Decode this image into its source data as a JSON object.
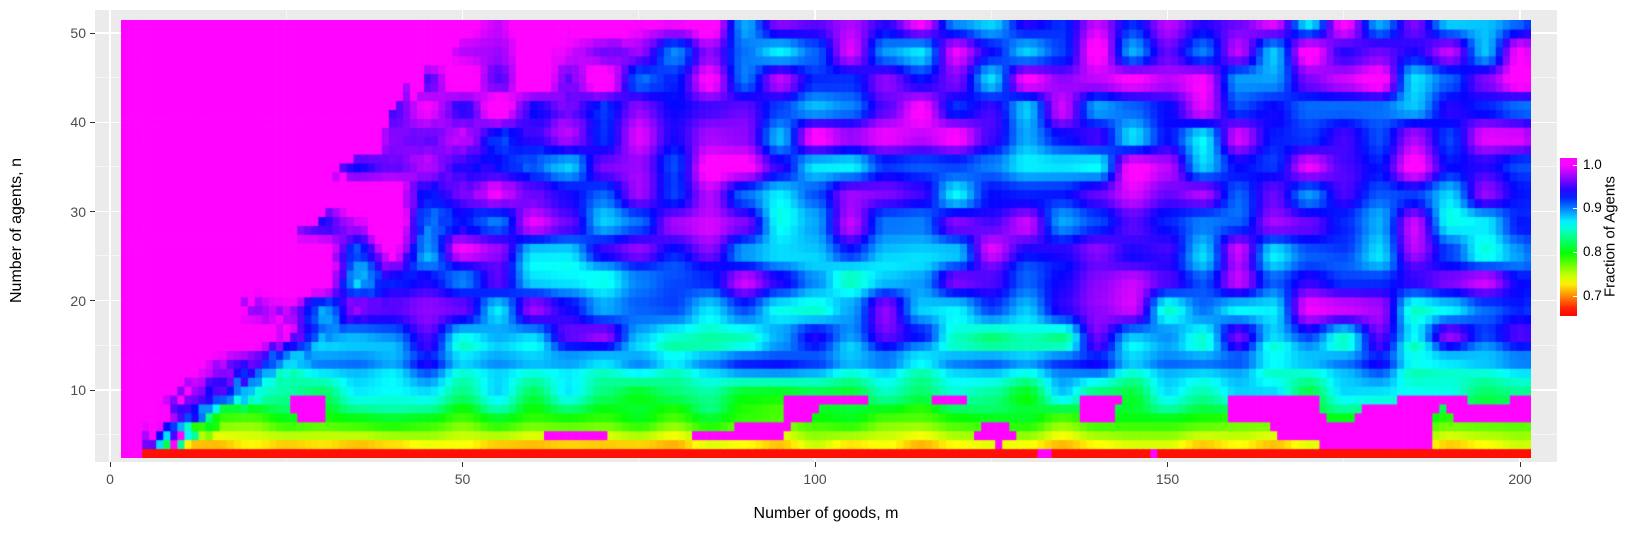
{
  "figure": {
    "background": "#ffffff",
    "panel_background": "#ebebeb",
    "grid_color": "#ffffff"
  },
  "x_axis": {
    "label": "Number of goods, m",
    "tick_labels": [
      "0",
      "50",
      "100",
      "150",
      "200"
    ],
    "tick_values": [
      0,
      50,
      100,
      150,
      200
    ],
    "minor_tick_values": [
      25,
      75,
      125,
      175
    ]
  },
  "y_axis": {
    "label": "Number of agents, n",
    "tick_labels": [
      "10",
      "20",
      "30",
      "40",
      "50"
    ],
    "tick_values": [
      10,
      20,
      30,
      40,
      50
    ],
    "minor_tick_values": [
      5,
      15,
      25,
      35,
      45
    ]
  },
  "legend": {
    "title": "Fraction of Agents",
    "tick_labels": [
      "1.0",
      "0.9",
      "0.8",
      "0.7"
    ],
    "tick_values": [
      1.0,
      0.9,
      0.8,
      0.7
    ],
    "bar_value_range": [
      0.655,
      1.015
    ]
  },
  "chart_data": {
    "type": "heatmap",
    "title": "",
    "xlabel": "Number of goods, m",
    "ylabel": "Number of agents, n",
    "legend_label": "Fraction of Agents",
    "x_range": [
      2,
      201
    ],
    "y_range": [
      3,
      51
    ],
    "cell_size": [
      1,
      1
    ],
    "x_axis_ticks": [
      0,
      50,
      100,
      150,
      200
    ],
    "y_axis_ticks": [
      10,
      20,
      30,
      40,
      50
    ],
    "value_range": [
      0.665,
      1.0
    ],
    "colormap_stops": [
      {
        "value": 0.665,
        "color": "#ff0000"
      },
      {
        "value": 0.7,
        "color": "#ff8400"
      },
      {
        "value": 0.75,
        "color": "#b8ff00"
      },
      {
        "value": 0.8,
        "color": "#00ff08"
      },
      {
        "value": 0.85,
        "color": "#00ffc0"
      },
      {
        "value": 0.9,
        "color": "#0080ff"
      },
      {
        "value": 0.95,
        "color": "#4000ff"
      },
      {
        "value": 1.0,
        "color": "#ff00ff"
      }
    ],
    "row_base_fractions": [
      [
        3,
        0.67
      ],
      [
        4,
        0.73
      ],
      [
        5,
        0.752
      ],
      [
        6,
        0.775
      ],
      [
        7,
        0.795
      ],
      [
        8,
        0.815
      ],
      [
        9,
        0.832
      ],
      [
        10,
        0.845
      ],
      [
        11,
        0.858
      ],
      [
        12,
        0.875
      ],
      [
        13,
        0.9
      ],
      [
        14,
        0.893
      ],
      [
        15,
        0.885
      ],
      [
        16,
        0.895
      ],
      [
        17,
        0.905
      ],
      [
        18,
        0.912
      ],
      [
        20,
        0.918
      ],
      [
        22,
        0.912
      ],
      [
        24,
        0.905
      ],
      [
        26,
        0.92
      ],
      [
        28,
        0.925
      ],
      [
        30,
        0.92
      ],
      [
        32,
        0.928
      ],
      [
        34,
        0.932
      ],
      [
        36,
        0.928
      ],
      [
        38,
        0.933
      ],
      [
        40,
        0.935
      ],
      [
        42,
        0.93
      ],
      [
        44,
        0.934
      ],
      [
        46,
        0.932
      ],
      [
        48,
        0.936
      ],
      [
        50,
        0.938
      ],
      [
        51,
        0.938
      ]
    ],
    "regions": {
      "solid_max_region": "fraction = 1.0 (magenta) wherever m <= n (large upper-left triangle)",
      "transition": "fraction falls smoothly from 1.0 to the row base value as m grows from n to about n + (0.8n + 5)",
      "bottom_row": "row n = 3 is solid red (~0.67) across all m with occasional magenta (1.0) segments",
      "speckle": "clustered green/teal patches (~0.82-0.88) over the blue/violet field for n > 14; scattered magenta (1.0) patches for n in 4..9, denser at large m; rare orange outliers (~0.70) for small n"
    }
  }
}
